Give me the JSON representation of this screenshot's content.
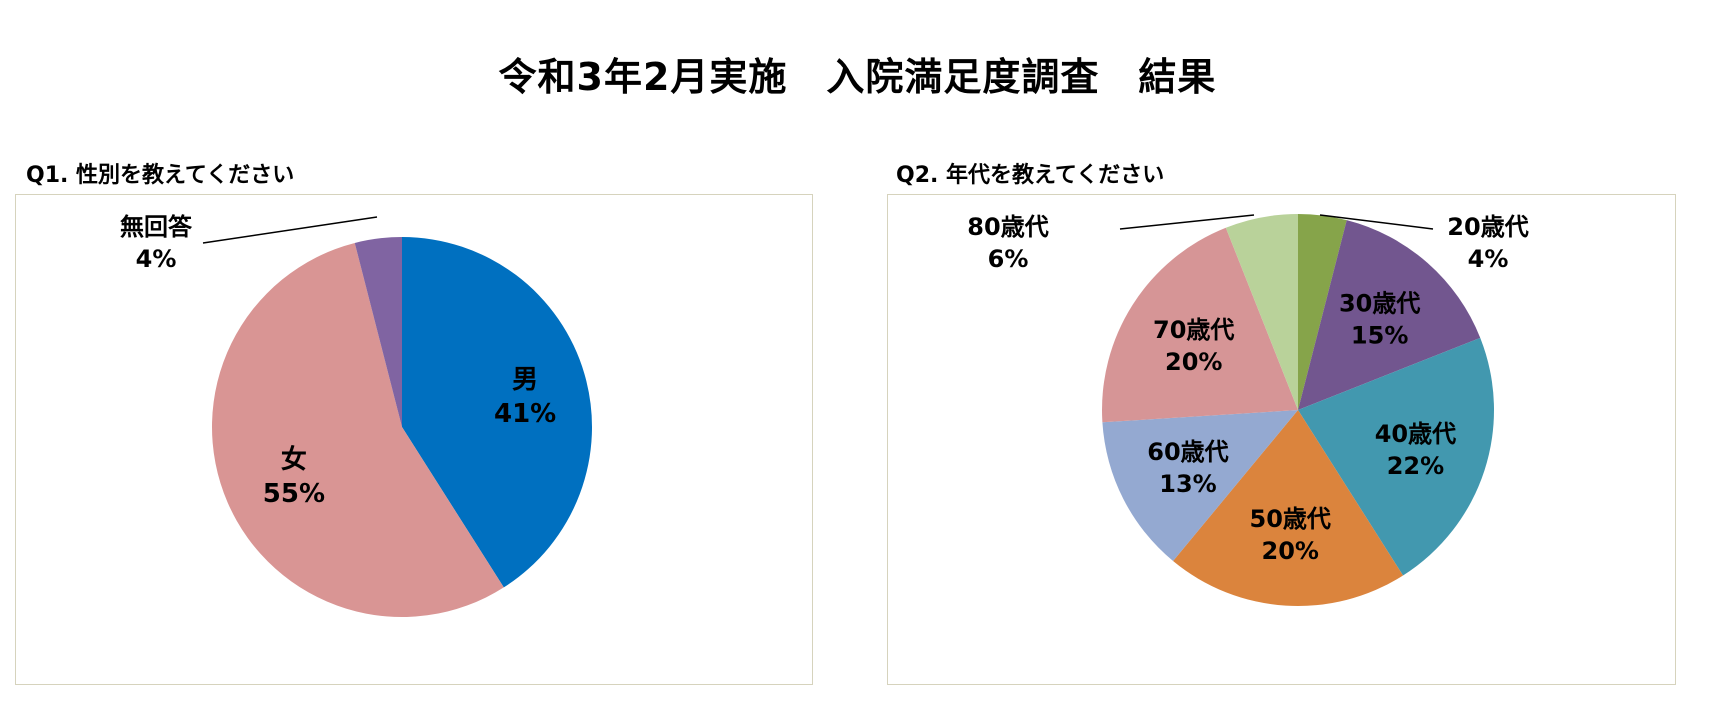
{
  "title": "令和3年2月実施　入院満足度調査　結果",
  "chart_data": [
    {
      "type": "pie",
      "title": "Q1.  性別を教えてください",
      "categories": [
        "男",
        "女",
        "無回答"
      ],
      "values": [
        41,
        55,
        4
      ],
      "value_labels": [
        "41%",
        "55%",
        "4%"
      ],
      "colors": [
        "#0070c0",
        "#d99594",
        "#8064a2"
      ],
      "start_angle_deg": 0,
      "direction": "clockwise",
      "legend": "none"
    },
    {
      "type": "pie",
      "title": "Q2.  年代を教えてください",
      "categories": [
        "20歳代",
        "30歳代",
        "40歳代",
        "50歳代",
        "60歳代",
        "70歳代",
        "80歳代"
      ],
      "values": [
        4,
        15,
        22,
        20,
        13,
        20,
        6
      ],
      "value_labels": [
        "4%",
        "15%",
        "22%",
        "20%",
        "13%",
        "20%",
        "6%"
      ],
      "colors": [
        "#86a44a",
        "#72568f",
        "#4298af",
        "#db843d",
        "#94a9d1",
        "#d69596",
        "#b9d29a"
      ],
      "start_angle_deg": 0,
      "direction": "clockwise",
      "legend": "none"
    }
  ]
}
